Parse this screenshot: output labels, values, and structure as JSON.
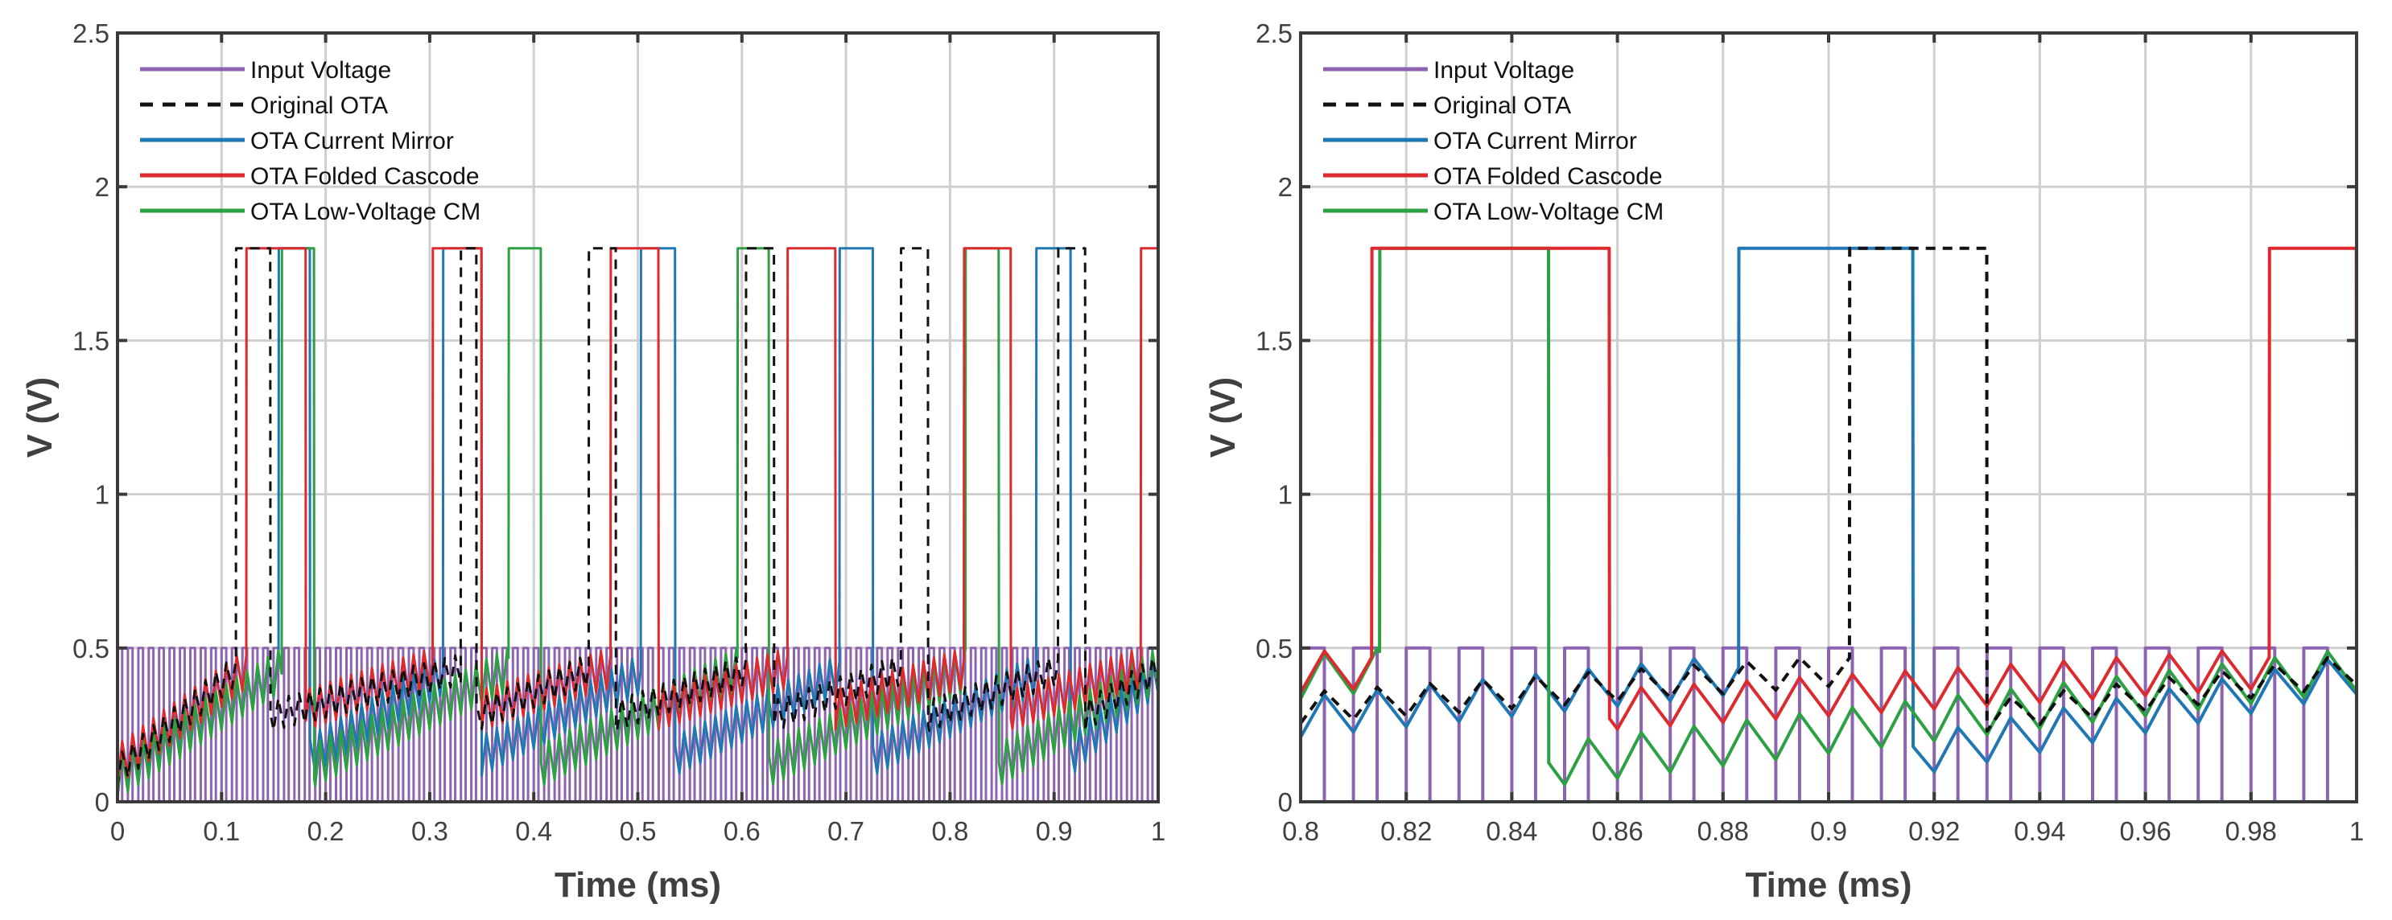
{
  "chart_data": [
    {
      "type": "line",
      "title": "",
      "xlabel": "Time (ms)",
      "ylabel": "V (V)",
      "xlim": [
        0,
        1
      ],
      "ylim": [
        0,
        2.5
      ],
      "xticks": [
        0,
        0.1,
        0.2,
        0.3,
        0.4,
        0.5,
        0.6,
        0.7,
        0.8,
        0.9,
        1
      ],
      "xtick_labels": [
        "0",
        "0.1",
        "0.2",
        "0.3",
        "0.4",
        "0.5",
        "0.6",
        "0.7",
        "0.8",
        "0.9",
        "1"
      ],
      "yticks": [
        0,
        0.5,
        1,
        1.5,
        2,
        2.5
      ],
      "ytick_labels": [
        "0",
        "0.5",
        "1",
        "1.5",
        "2",
        "2.5"
      ],
      "grid": true,
      "legend_position": "top-left"
    },
    {
      "type": "line",
      "title": "",
      "xlabel": "Time (ms)",
      "ylabel": "V (V)",
      "xlim": [
        0.8,
        1
      ],
      "ylim": [
        0,
        2.5
      ],
      "xticks": [
        0.8,
        0.82,
        0.84,
        0.86,
        0.88,
        0.9,
        0.92,
        0.94,
        0.96,
        0.98,
        1
      ],
      "xtick_labels": [
        "0.8",
        "0.82",
        "0.84",
        "0.86",
        "0.88",
        "0.9",
        "0.92",
        "0.94",
        "0.96",
        "0.98",
        "1"
      ],
      "yticks": [
        0,
        0.5,
        1,
        1.5,
        2,
        2.5
      ],
      "ytick_labels": [
        "0",
        "0.5",
        "1",
        "1.5",
        "2",
        "2.5"
      ],
      "grid": true,
      "legend_position": "top-left"
    }
  ],
  "series": [
    {
      "name": "Input Voltage",
      "color": "#8e63b0",
      "dash": false,
      "kind": "square",
      "low": 0,
      "high": 0.5,
      "period_ms": 0.01,
      "duty": 0.45
    },
    {
      "name": "Original OTA",
      "color": "#111111",
      "dash": true,
      "kind": "spike",
      "high": 1.8,
      "start_level": 0.1,
      "reset_level": 0.28,
      "threshold": 0.48,
      "ripple": 0.1,
      "pulses": [
        [
          0.114,
          0.147
        ],
        [
          0.33,
          0.345
        ],
        [
          0.453,
          0.479
        ],
        [
          0.604,
          0.631
        ],
        [
          0.753,
          0.779
        ],
        [
          0.904,
          0.93
        ]
      ]
    },
    {
      "name": "OTA Current Mirror",
      "color": "#1f77b4",
      "dash": false,
      "kind": "spike",
      "high": 1.8,
      "start_level": 0.1,
      "reset_level": 0.15,
      "threshold": 0.48,
      "ripple": 0.13,
      "pulses": [
        [
          0.155,
          0.185
        ],
        [
          0.313,
          0.35
        ],
        [
          0.503,
          0.536
        ],
        [
          0.694,
          0.726
        ],
        [
          0.883,
          0.916
        ]
      ]
    },
    {
      "name": "OTA Folded Cascode",
      "color": "#dc2a2e",
      "dash": false,
      "kind": "spike",
      "high": 1.8,
      "start_level": 0.12,
      "reset_level": 0.3,
      "threshold": 0.5,
      "ripple": 0.13,
      "pulses": [
        [
          0.124,
          0.181
        ],
        [
          0.303,
          0.35
        ],
        [
          0.474,
          0.52
        ],
        [
          0.644,
          0.69
        ],
        [
          0.8135,
          0.8585
        ],
        [
          0.9835,
          1.0
        ]
      ]
    },
    {
      "name": "OTA Low-Voltage CM",
      "color": "#2ca043",
      "dash": false,
      "kind": "spike",
      "high": 1.8,
      "start_level": 0.08,
      "reset_level": 0.12,
      "threshold": 0.5,
      "ripple": 0.14,
      "pulses": [
        [
          0.158,
          0.189
        ],
        [
          0.376,
          0.407
        ],
        [
          0.596,
          0.626
        ],
        [
          0.815,
          0.847
        ]
      ]
    }
  ]
}
